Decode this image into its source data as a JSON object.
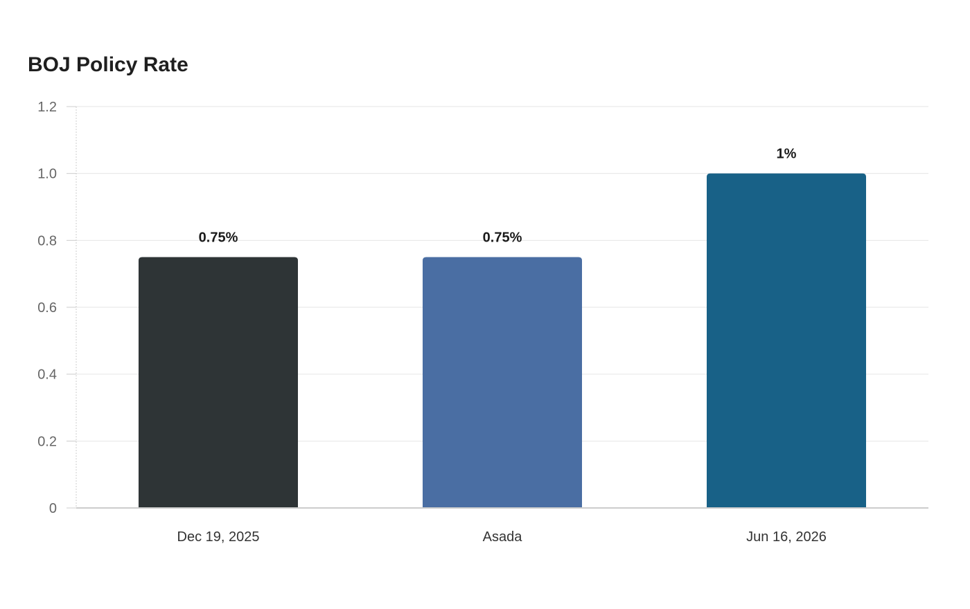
{
  "chart_data": {
    "type": "bar",
    "title": "BOJ Policy Rate",
    "xlabel": "",
    "ylabel": "",
    "categories": [
      "Dec 19, 2025",
      "Asada",
      "Jun 16, 2026"
    ],
    "values": [
      0.75,
      0.75,
      1.0
    ],
    "data_labels": [
      "0.75%",
      "0.75%",
      "1%"
    ],
    "colors": [
      "#2e3436",
      "#4a6ea3",
      "#186187"
    ],
    "ylim": [
      0,
      1.2
    ],
    "yticks": [
      0,
      0.2,
      0.4,
      0.6,
      0.8,
      1.0,
      1.2
    ],
    "ytick_labels": [
      "0",
      "0.2",
      "0.4",
      "0.6",
      "0.8",
      "1.0",
      "1.2"
    ],
    "grid": true,
    "legend": "none"
  }
}
